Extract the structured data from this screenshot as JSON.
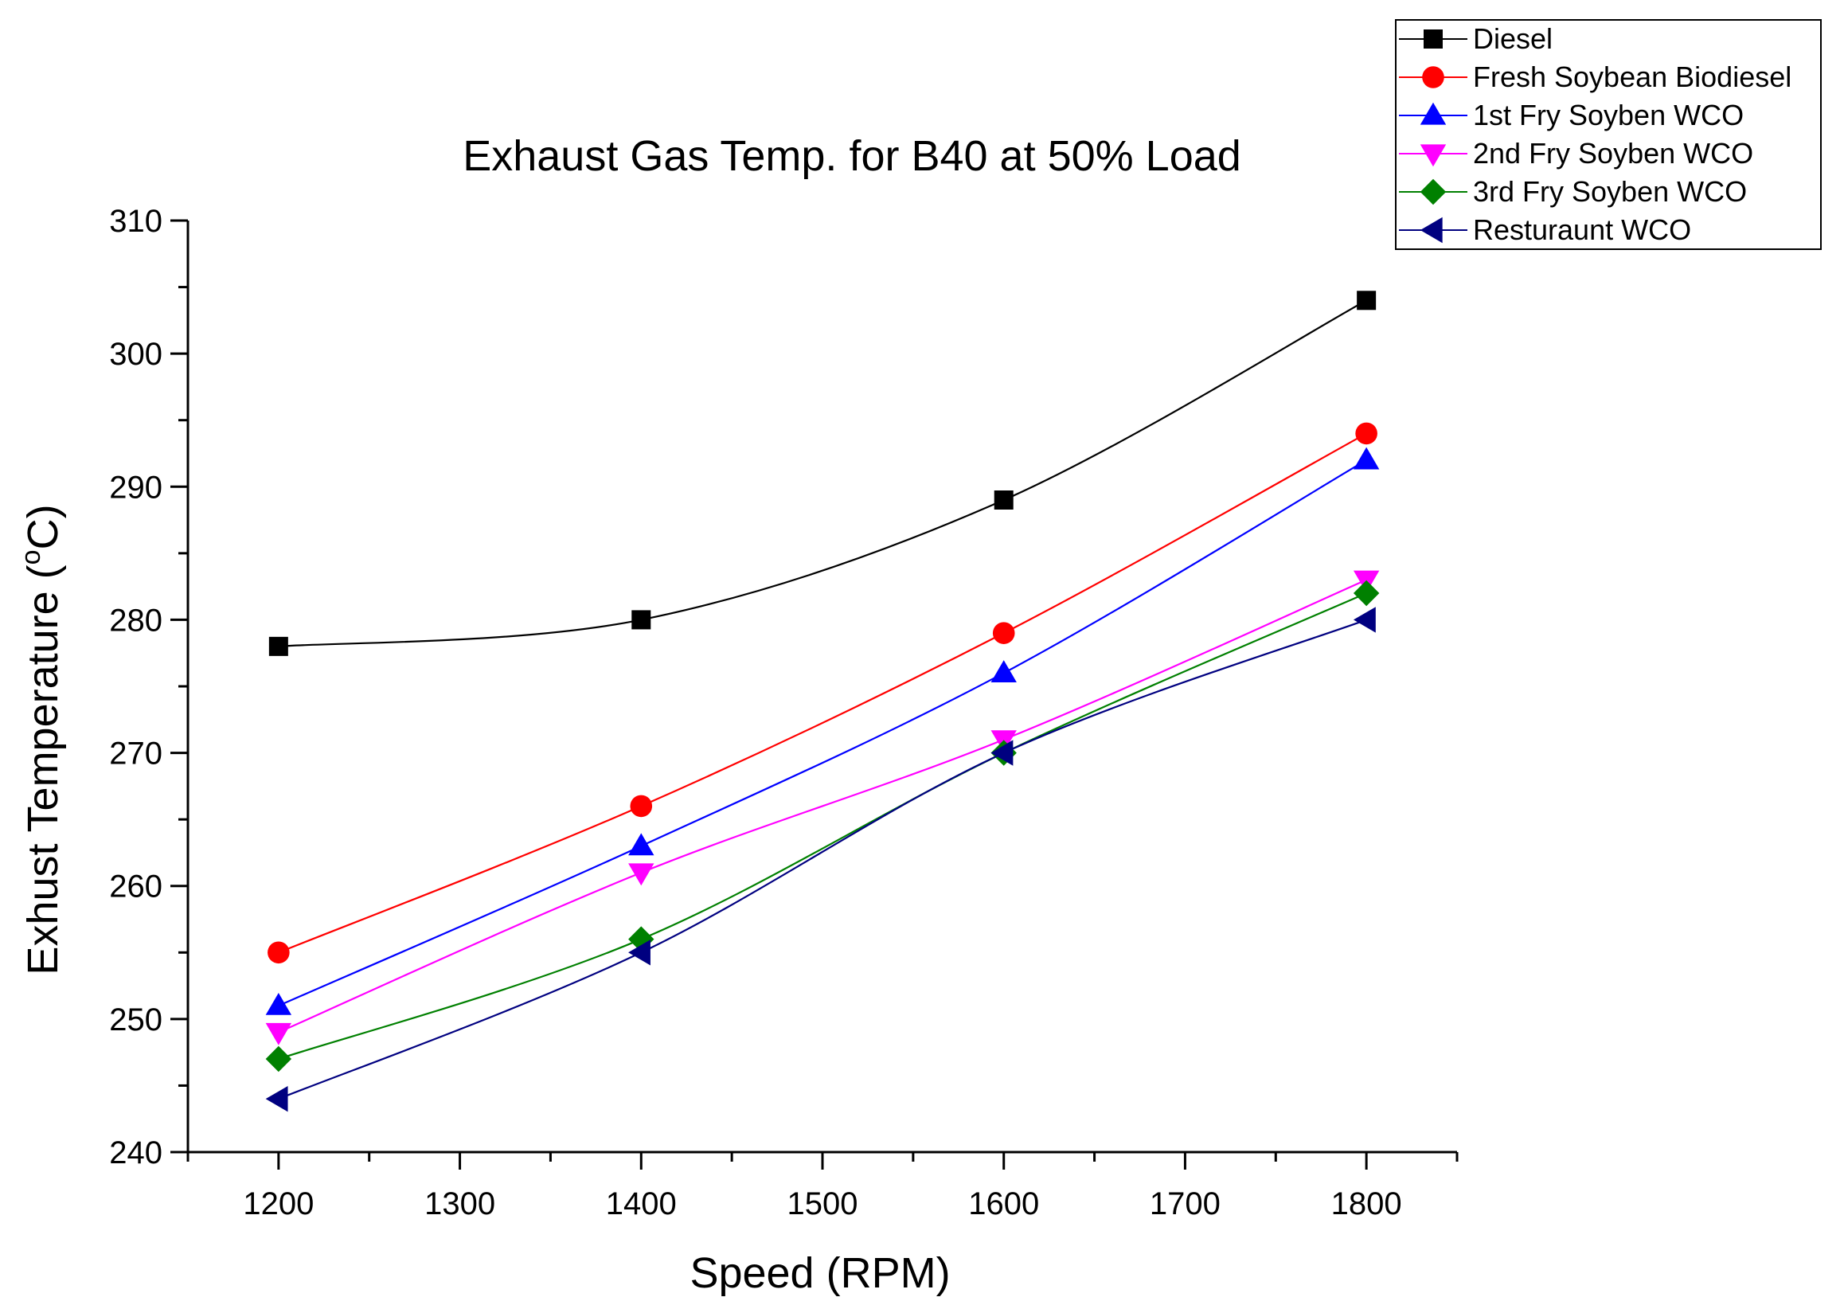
{
  "chart_data": {
    "type": "line",
    "title": "Exhaust Gas Temp. for B40 at 50% Load",
    "xlabel": "Speed (RPM)",
    "ylabel": {
      "main": "Exhust Temperature (",
      "superscript": "o",
      "unit": "C)"
    },
    "xlim": [
      1150,
      1850
    ],
    "ylim": [
      240,
      310
    ],
    "xticks": [
      1200,
      1300,
      1400,
      1500,
      1600,
      1700,
      1800
    ],
    "yticks": [
      240,
      250,
      260,
      270,
      280,
      290,
      300,
      310
    ],
    "x": [
      1200,
      1400,
      1600,
      1800
    ],
    "series": [
      {
        "name": "Diesel",
        "values": [
          278,
          280,
          289,
          304
        ],
        "color": "#000000",
        "marker": "square"
      },
      {
        "name": "Fresh Soybean Biodiesel",
        "values": [
          255,
          266,
          279,
          294
        ],
        "color": "#ff0000",
        "marker": "circle"
      },
      {
        "name": "1st Fry Soyben WCO",
        "values": [
          251,
          263,
          276,
          292
        ],
        "color": "#0000ff",
        "marker": "triangle-up"
      },
      {
        "name": "2nd Fry Soyben WCO",
        "values": [
          249,
          261,
          271,
          283
        ],
        "color": "#ff00ff",
        "marker": "triangle-down"
      },
      {
        "name": "3rd Fry Soyben WCO",
        "values": [
          247,
          256,
          270,
          282
        ],
        "color": "#008000",
        "marker": "diamond"
      },
      {
        "name": "Resturaunt WCO",
        "values": [
          244,
          255,
          270,
          280
        ],
        "color": "#000080",
        "marker": "triangle-left"
      }
    ],
    "legend_position": "top-right"
  }
}
